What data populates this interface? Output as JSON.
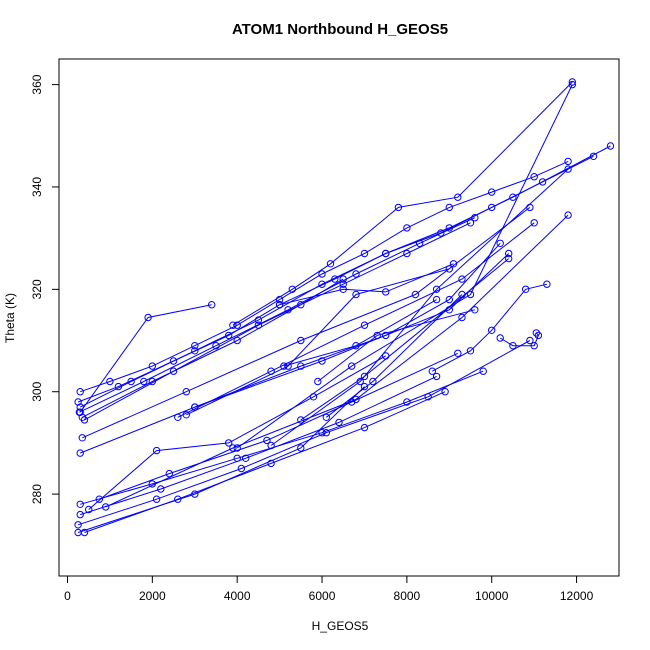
{
  "chart_data": {
    "type": "scatter",
    "title": "ATOM1 Northbound H_GEOS5",
    "xlabel": "H_GEOS5",
    "ylabel": "Theta (K)",
    "xlim": [
      -200,
      13000
    ],
    "ylim": [
      264,
      365
    ],
    "x_ticks": [
      0,
      2000,
      4000,
      6000,
      8000,
      10000,
      12000
    ],
    "y_ticks": [
      280,
      300,
      320,
      340,
      360
    ],
    "grid": false,
    "color": "#0000ff",
    "series": [
      {
        "x": [
          300,
          1000,
          2000,
          3000,
          4000,
          5000,
          6000,
          7000,
          8000,
          9000,
          10000,
          11000,
          11800
        ],
        "y": [
          300,
          302,
          305,
          309,
          313,
          318,
          323,
          327,
          332,
          336,
          339,
          342,
          345
        ]
      },
      {
        "x": [
          250,
          1200,
          2500,
          3800,
          5000,
          6300,
          7500,
          8800,
          10000,
          11200,
          12400
        ],
        "y": [
          298,
          301,
          306,
          311,
          317,
          322,
          327,
          331,
          336,
          341,
          346
        ]
      },
      {
        "x": [
          300,
          1500,
          3000,
          4500,
          6000,
          7500,
          9000,
          10500,
          12800
        ],
        "y": [
          297,
          302,
          308,
          314,
          321,
          327,
          332,
          338,
          348
        ]
      },
      {
        "x": [
          280,
          1800,
          3500,
          5200,
          6800,
          8300,
          9600
        ],
        "y": [
          296,
          302,
          309,
          316,
          323,
          329,
          334
        ]
      },
      {
        "x": [
          350,
          2000,
          4000,
          5500,
          6500
        ],
        "y": [
          295,
          302,
          310,
          317,
          322
        ]
      },
      {
        "x": [
          400,
          2500,
          4500,
          6500,
          8000,
          9500
        ],
        "y": [
          294.5,
          304,
          313,
          321,
          327,
          333
        ]
      },
      {
        "x": [
          300,
          1900,
          3400
        ],
        "y": [
          296,
          314.5,
          317
        ]
      },
      {
        "x": [
          3900,
          5300,
          6200,
          7800,
          9200,
          11900
        ],
        "y": [
          313,
          320,
          325,
          336,
          338,
          360.5
        ]
      },
      {
        "x": [
          300,
          3000,
          6000,
          9000,
          10400
        ],
        "y": [
          288,
          297,
          306,
          316,
          327
        ]
      },
      {
        "x": [
          350,
          2800,
          5500,
          8200,
          10900
        ],
        "y": [
          291,
          300,
          310,
          319,
          336
        ]
      },
      {
        "x": [
          2600,
          4800,
          7000,
          9300,
          11000
        ],
        "y": [
          295,
          304,
          313,
          322,
          333
        ]
      },
      {
        "x": [
          2800,
          5200,
          6800,
          9000
        ],
        "y": [
          295.5,
          305,
          319,
          324
        ]
      },
      {
        "x": [
          5000,
          6500,
          7500,
          9100
        ],
        "y": [
          317,
          320,
          319.5,
          325
        ]
      },
      {
        "x": [
          3000,
          5500,
          7500,
          9000,
          10200
        ],
        "y": [
          297,
          305,
          311,
          318,
          329
        ]
      },
      {
        "x": [
          5100,
          6800,
          8700
        ],
        "y": [
          305,
          309,
          318
        ]
      },
      {
        "x": [
          5900,
          7300,
          9600
        ],
        "y": [
          302,
          311,
          316
        ]
      },
      {
        "x": [
          6100,
          7200,
          9300
        ],
        "y": [
          295,
          302,
          319
        ]
      },
      {
        "x": [
          5500,
          7000,
          10400
        ],
        "y": [
          294.5,
          303,
          326
        ]
      },
      {
        "x": [
          8600,
          9500,
          10000,
          10800,
          11300
        ],
        "y": [
          304,
          308,
          312,
          320,
          321
        ]
      },
      {
        "x": [
          10200,
          10500,
          11000,
          11100,
          11050
        ],
        "y": [
          310.5,
          309,
          309,
          311,
          311.5
        ]
      },
      {
        "x": [
          300,
          2000,
          4000,
          6000,
          8000,
          9800
        ],
        "y": [
          278,
          282,
          287,
          292,
          298,
          304
        ]
      },
      {
        "x": [
          300,
          2200,
          4200,
          6400,
          8700
        ],
        "y": [
          276,
          281,
          287,
          294,
          303
        ]
      },
      {
        "x": [
          250,
          2100,
          4100,
          6100,
          8500,
          10900
        ],
        "y": [
          274,
          279,
          285,
          292,
          299,
          310
        ]
      },
      {
        "x": [
          400,
          2600,
          4800,
          7000,
          8900
        ],
        "y": [
          272.5,
          279,
          286,
          293,
          300
        ]
      },
      {
        "x": [
          250,
          3000,
          5500,
          7000
        ],
        "y": [
          272.5,
          280,
          289,
          301
        ]
      },
      {
        "x": [
          500,
          2100,
          3800,
          5800,
          7500
        ],
        "y": [
          277,
          288.5,
          290,
          299,
          307
        ]
      },
      {
        "x": [
          750,
          2400,
          4700,
          6700,
          9200
        ],
        "y": [
          279,
          284,
          290.5,
          298,
          307.5
        ]
      },
      {
        "x": [
          900,
          3900,
          6800,
          9300,
          11800
        ],
        "y": [
          277.5,
          289,
          298.5,
          314.5,
          334.5
        ]
      },
      {
        "x": [
          4000,
          6700,
          9500,
          11900
        ],
        "y": [
          289,
          305,
          319,
          360
        ]
      },
      {
        "x": [
          4800,
          6900,
          8700,
          11800
        ],
        "y": [
          289.5,
          302,
          320,
          343.5
        ]
      }
    ]
  }
}
